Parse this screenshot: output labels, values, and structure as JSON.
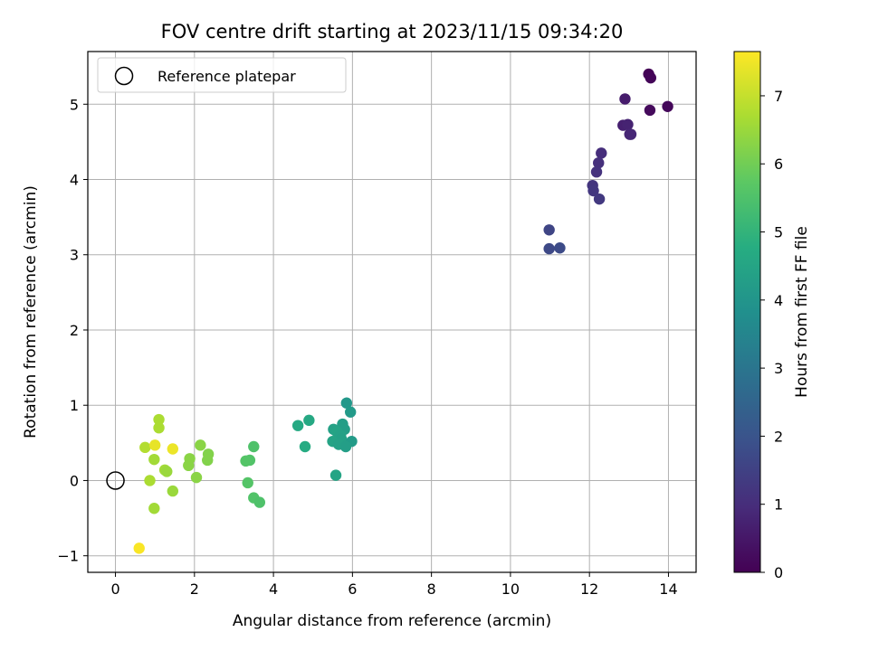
{
  "chart_data": {
    "type": "scatter",
    "title": "FOV centre drift starting at 2023/11/15 09:34:20",
    "xlabel": "Angular distance from reference (arcmin)",
    "ylabel": "Rotation from reference (arcmin)",
    "xlim": [
      -0.7,
      14.7
    ],
    "ylim": [
      -1.22,
      5.7
    ],
    "x_ticks": [
      0,
      2,
      4,
      6,
      8,
      10,
      12,
      14
    ],
    "y_ticks": [
      -1,
      0,
      1,
      2,
      3,
      4,
      5
    ],
    "y_tick_labels": [
      "−1",
      "0",
      "1",
      "2",
      "3",
      "4",
      "5"
    ],
    "grid": true,
    "legend": {
      "position": "top-left",
      "entries": [
        {
          "label": "Reference platepar",
          "marker": "open-circle"
        }
      ]
    },
    "reference_point": {
      "x": 0,
      "y": 0
    },
    "colorbar": {
      "label": "Hours from first FF file",
      "range": [
        0,
        7.65
      ],
      "ticks": [
        0,
        1,
        2,
        3,
        4,
        5,
        6,
        7
      ],
      "colormap": "viridis"
    },
    "points": [
      {
        "x": 13.5,
        "y": 5.4,
        "hours": 0.05
      },
      {
        "x": 13.55,
        "y": 5.35,
        "hours": 0.1
      },
      {
        "x": 13.98,
        "y": 4.97,
        "hours": 0.15
      },
      {
        "x": 13.53,
        "y": 4.92,
        "hours": 0.2
      },
      {
        "x": 12.9,
        "y": 5.07,
        "hours": 0.6
      },
      {
        "x": 12.85,
        "y": 4.72,
        "hours": 0.7
      },
      {
        "x": 12.97,
        "y": 4.73,
        "hours": 0.75
      },
      {
        "x": 13.02,
        "y": 4.6,
        "hours": 0.8
      },
      {
        "x": 13.05,
        "y": 4.6,
        "hours": 0.85
      },
      {
        "x": 12.3,
        "y": 4.35,
        "hours": 1.0
      },
      {
        "x": 12.23,
        "y": 4.22,
        "hours": 1.05
      },
      {
        "x": 12.18,
        "y": 4.1,
        "hours": 1.1
      },
      {
        "x": 12.08,
        "y": 3.92,
        "hours": 1.2
      },
      {
        "x": 12.1,
        "y": 3.85,
        "hours": 1.25
      },
      {
        "x": 12.25,
        "y": 3.74,
        "hours": 1.3
      },
      {
        "x": 10.98,
        "y": 3.33,
        "hours": 1.6
      },
      {
        "x": 10.98,
        "y": 3.08,
        "hours": 1.7
      },
      {
        "x": 11.25,
        "y": 3.09,
        "hours": 1.75
      },
      {
        "x": 5.85,
        "y": 1.03,
        "hours": 4.1
      },
      {
        "x": 5.95,
        "y": 0.91,
        "hours": 4.15
      },
      {
        "x": 4.9,
        "y": 0.8,
        "hours": 4.6
      },
      {
        "x": 4.62,
        "y": 0.73,
        "hours": 4.65
      },
      {
        "x": 5.75,
        "y": 0.75,
        "hours": 4.3
      },
      {
        "x": 5.8,
        "y": 0.68,
        "hours": 4.3
      },
      {
        "x": 5.52,
        "y": 0.68,
        "hours": 4.4
      },
      {
        "x": 5.6,
        "y": 0.65,
        "hours": 4.45
      },
      {
        "x": 5.7,
        "y": 0.6,
        "hours": 4.4
      },
      {
        "x": 5.72,
        "y": 0.55,
        "hours": 4.35
      },
      {
        "x": 5.5,
        "y": 0.52,
        "hours": 4.45
      },
      {
        "x": 5.98,
        "y": 0.52,
        "hours": 4.2
      },
      {
        "x": 5.65,
        "y": 0.48,
        "hours": 4.4
      },
      {
        "x": 5.83,
        "y": 0.45,
        "hours": 4.3
      },
      {
        "x": 4.8,
        "y": 0.45,
        "hours": 4.7
      },
      {
        "x": 5.58,
        "y": 0.07,
        "hours": 4.5
      },
      {
        "x": 3.5,
        "y": 0.45,
        "hours": 5.5
      },
      {
        "x": 3.4,
        "y": 0.27,
        "hours": 5.55
      },
      {
        "x": 3.3,
        "y": 0.26,
        "hours": 5.6
      },
      {
        "x": 3.35,
        "y": -0.03,
        "hours": 5.6
      },
      {
        "x": 3.5,
        "y": -0.23,
        "hours": 5.55
      },
      {
        "x": 3.65,
        "y": -0.29,
        "hours": 5.5
      },
      {
        "x": 2.15,
        "y": 0.47,
        "hours": 6.3
      },
      {
        "x": 2.35,
        "y": 0.35,
        "hours": 6.2
      },
      {
        "x": 2.33,
        "y": 0.27,
        "hours": 6.2
      },
      {
        "x": 1.88,
        "y": 0.29,
        "hours": 6.3
      },
      {
        "x": 1.85,
        "y": 0.2,
        "hours": 6.3
      },
      {
        "x": 2.05,
        "y": 0.04,
        "hours": 6.3
      },
      {
        "x": 1.25,
        "y": 0.14,
        "hours": 6.6
      },
      {
        "x": 1.3,
        "y": 0.12,
        "hours": 6.5
      },
      {
        "x": 1.1,
        "y": 0.81,
        "hours": 6.7
      },
      {
        "x": 1.1,
        "y": 0.7,
        "hours": 6.7
      },
      {
        "x": 0.75,
        "y": 0.44,
        "hours": 6.8
      },
      {
        "x": 0.98,
        "y": 0.28,
        "hours": 6.6
      },
      {
        "x": 0.87,
        "y": 0.0,
        "hours": 6.7
      },
      {
        "x": 1.45,
        "y": -0.14,
        "hours": 6.5
      },
      {
        "x": 0.98,
        "y": -0.37,
        "hours": 6.6
      },
      {
        "x": 1.0,
        "y": 0.47,
        "hours": 7.4
      },
      {
        "x": 1.45,
        "y": 0.42,
        "hours": 7.45
      },
      {
        "x": 0.6,
        "y": -0.9,
        "hours": 7.6
      }
    ]
  }
}
